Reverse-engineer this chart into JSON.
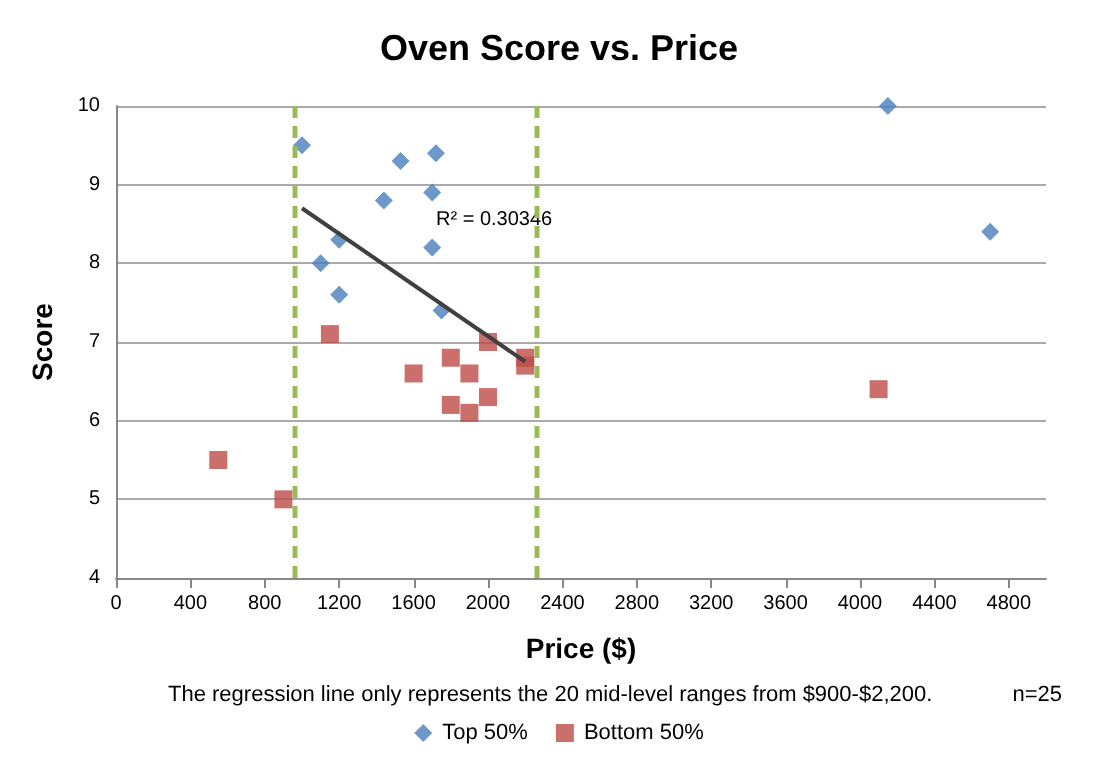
{
  "chart_data": {
    "type": "scatter",
    "title": "Oven Score vs. Price",
    "xlabel": "Price ($)",
    "ylabel": "Score",
    "xlim": [
      0,
      5000
    ],
    "xticks": [
      0,
      400,
      800,
      1200,
      1600,
      2000,
      2400,
      2800,
      3200,
      3600,
      4000,
      4400,
      4800
    ],
    "ylim": [
      4,
      10
    ],
    "yticks": [
      4,
      5,
      6,
      7,
      8,
      9,
      10
    ],
    "grid": "y",
    "legend": "bottom",
    "series": [
      {
        "name": "Top 50%",
        "color": "#4a7ebb",
        "marker": "diamond",
        "x": [
          1000,
          1530,
          1720,
          1440,
          1700,
          1200,
          1700,
          1100,
          1200,
          1750,
          4150,
          4700
        ],
        "values": [
          9.5,
          9.3,
          9.4,
          8.8,
          8.9,
          8.3,
          8.2,
          8.0,
          7.6,
          7.4,
          10.0,
          8.4
        ]
      },
      {
        "name": "Bottom 50%",
        "color": "#be4b48",
        "marker": "square",
        "x": [
          1150,
          550,
          900,
          1600,
          1800,
          1900,
          2000,
          2200,
          2200,
          1800,
          1900,
          2000,
          4100
        ],
        "values": [
          7.1,
          5.5,
          5.0,
          6.6,
          6.8,
          6.6,
          7.0,
          6.8,
          6.7,
          6.2,
          6.1,
          6.3,
          6.4
        ]
      },
      {
        "type": "line",
        "color": "#404040",
        "marker": "none",
        "x": [
          1000,
          2200
        ],
        "values": [
          8.7,
          6.75
        ]
      }
    ],
    "ref_lines": [
      {
        "axis": "x",
        "value": 960,
        "color": "#9bbb59",
        "line_style": "dashed"
      },
      {
        "axis": "x",
        "value": 2260,
        "color": "#9bbb59",
        "line_style": "dashed"
      }
    ],
    "annotations": [
      "R² = 0.30346",
      "The regression line only represents the 20 mid-level ranges from $900-$2,200.",
      "n=25"
    ]
  }
}
